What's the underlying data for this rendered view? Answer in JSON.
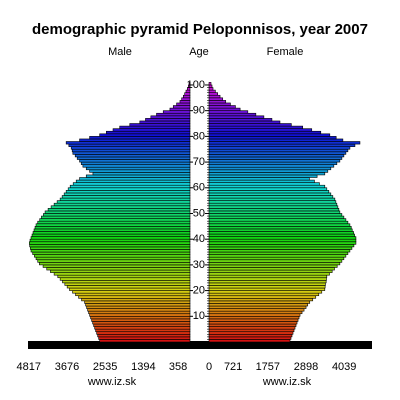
{
  "chart_data": {
    "type": "pyramid",
    "title": "demographic pyramid Peloponnisos, year 2007",
    "ylabel": "Age",
    "credits": [
      "www.iz.sk",
      "www.iz.sk"
    ],
    "y": [
      0,
      1,
      2,
      3,
      4,
      5,
      6,
      7,
      8,
      9,
      10,
      11,
      12,
      13,
      14,
      15,
      16,
      17,
      18,
      19,
      20,
      21,
      22,
      23,
      24,
      25,
      26,
      27,
      28,
      29,
      30,
      31,
      32,
      33,
      34,
      35,
      36,
      37,
      38,
      39,
      40,
      41,
      42,
      43,
      44,
      45,
      46,
      47,
      48,
      49,
      50,
      51,
      52,
      53,
      54,
      55,
      56,
      57,
      58,
      59,
      60,
      61,
      62,
      63,
      64,
      65,
      66,
      67,
      68,
      69,
      70,
      71,
      72,
      73,
      74,
      75,
      76,
      77,
      78,
      79,
      80,
      81,
      82,
      83,
      84,
      85,
      86,
      87,
      88,
      89,
      90,
      91,
      92,
      93,
      94,
      95,
      96,
      97,
      98,
      99,
      100
    ],
    "ylim": [
      0,
      101
    ],
    "yticks": [
      10,
      20,
      30,
      40,
      50,
      60,
      70,
      80,
      90,
      100
    ],
    "xlim": [
      0,
      4900
    ],
    "xticks_left": [
      4817,
      3676,
      2535,
      1394,
      358
    ],
    "xticks_right": [
      0,
      721,
      1757,
      2898,
      4039
    ],
    "hue_range": [
      0,
      300
    ],
    "series": [
      {
        "name": "Male",
        "side": "left",
        "values": [
          2700,
          2730,
          2760,
          2790,
          2820,
          2850,
          2880,
          2910,
          2940,
          2970,
          3000,
          3030,
          3060,
          3090,
          3120,
          3150,
          3240,
          3330,
          3420,
          3510,
          3600,
          3670,
          3740,
          3810,
          3880,
          3950,
          4060,
          4170,
          4280,
          4390,
          4500,
          4550,
          4600,
          4650,
          4700,
          4750,
          4770,
          4790,
          4800,
          4780,
          4750,
          4720,
          4690,
          4660,
          4630,
          4600,
          4550,
          4490,
          4440,
          4380,
          4330,
          4240,
          4150,
          4060,
          3970,
          3880,
          3820,
          3760,
          3700,
          3640,
          3580,
          3490,
          3400,
          3300,
          3100,
          2900,
          3000,
          3100,
          3200,
          3250,
          3300,
          3370,
          3430,
          3500,
          3520,
          3550,
          3620,
          3700,
          3300,
          3000,
          2700,
          2500,
          2300,
          2100,
          1800,
          1500,
          1330,
          1170,
          1000,
          800,
          600,
          500,
          400,
          300,
          250,
          200,
          160,
          120,
          80,
          50,
          30
        ]
      },
      {
        "name": "Female",
        "side": "right",
        "values": [
          2420,
          2450,
          2480,
          2510,
          2540,
          2570,
          2600,
          2630,
          2660,
          2690,
          2720,
          2780,
          2840,
          2900,
          2950,
          3010,
          3100,
          3190,
          3280,
          3370,
          3460,
          3470,
          3480,
          3500,
          3510,
          3520,
          3600,
          3680,
          3750,
          3830,
          3910,
          3970,
          4030,
          4090,
          4150,
          4210,
          4270,
          4330,
          4390,
          4390,
          4390,
          4350,
          4320,
          4280,
          4250,
          4210,
          4150,
          4090,
          4030,
          3970,
          3910,
          3880,
          3850,
          3820,
          3790,
          3760,
          3700,
          3640,
          3580,
          3520,
          3460,
          3300,
          3150,
          3000,
          3230,
          3460,
          3550,
          3640,
          3730,
          3820,
          3910,
          3970,
          4030,
          4090,
          4150,
          4210,
          4360,
          4510,
          4000,
          3800,
          3610,
          3340,
          3070,
          2800,
          2460,
          2120,
          1880,
          1640,
          1400,
          1160,
          930,
          790,
          640,
          500,
          410,
          330,
          260,
          190,
          120,
          90,
          60
        ]
      }
    ]
  }
}
